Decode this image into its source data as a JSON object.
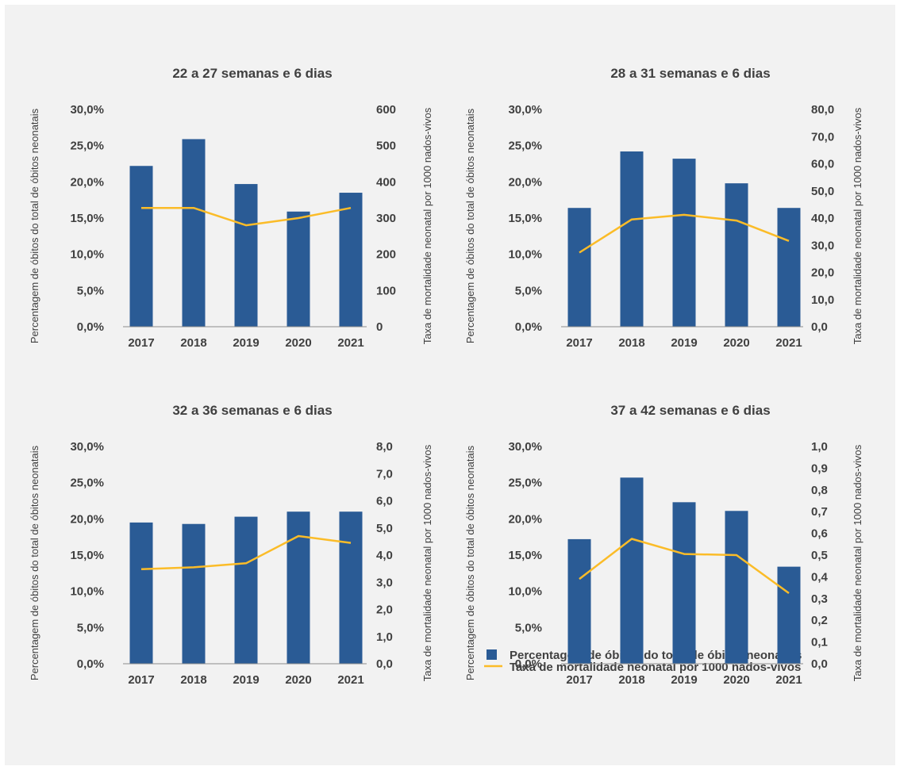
{
  "colors": {
    "bar": "#2a5b95",
    "line": "#fbbc28",
    "text": "#404040",
    "axis": "#8c8c8c",
    "background": "#f2f2f2"
  },
  "legend": {
    "bar_label": "Percentagem de óbitos do total de óbitos neonatais",
    "line_label": "Taxa de mortalidade neonatal por 1000 nados-vivos"
  },
  "chart_data": [
    {
      "type": "bar",
      "title": "22 a 27 semanas e 6 dias",
      "categories": [
        "2017",
        "2018",
        "2019",
        "2020",
        "2021"
      ],
      "ylabel": "Percentagem de óbitos do total de óbitos neonatais",
      "y2label": "Taxa de mortalidade neonatal por 1000 nados-vivos",
      "ylim": [
        0,
        30
      ],
      "yticks": [
        "0,0%",
        "5,0%",
        "10,0%",
        "15,0%",
        "20,0%",
        "25,0%",
        "30,0%"
      ],
      "y2lim": [
        0,
        600
      ],
      "y2ticks": [
        "0",
        "100",
        "200",
        "300",
        "400",
        "500",
        "600"
      ],
      "series": [
        {
          "name": "Percentagem de óbitos do total de óbitos neonatais",
          "type": "bar",
          "axis": "left",
          "values": [
            22.2,
            25.9,
            19.7,
            15.9,
            18.5
          ]
        },
        {
          "name": "Taxa de mortalidade neonatal por 1000 nados-vivos",
          "type": "line",
          "axis": "right",
          "values": [
            328,
            328,
            280,
            300,
            328
          ]
        }
      ]
    },
    {
      "type": "bar",
      "title": "28 a 31 semanas e 6 dias",
      "categories": [
        "2017",
        "2018",
        "2019",
        "2020",
        "2021"
      ],
      "ylabel": "Percentagem de óbitos do total de óbitos neonatais",
      "y2label": "Taxa de mortalidade neonatal por 1000 nados-vivos",
      "ylim": [
        0,
        30
      ],
      "yticks": [
        "0,0%",
        "5,0%",
        "10,0%",
        "15,0%",
        "20,0%",
        "25,0%",
        "30,0%"
      ],
      "y2lim": [
        0,
        80
      ],
      "y2ticks": [
        "0,0",
        "10,0",
        "20,0",
        "30,0",
        "40,0",
        "50,0",
        "60,0",
        "70,0",
        "80,0"
      ],
      "series": [
        {
          "name": "Percentagem de óbitos do total de óbitos neonatais",
          "type": "bar",
          "axis": "left",
          "values": [
            16.4,
            24.2,
            23.2,
            19.8,
            16.4
          ]
        },
        {
          "name": "Taxa de mortalidade neonatal por 1000 nados-vivos",
          "type": "line",
          "axis": "right",
          "values": [
            27.3,
            39.5,
            41.2,
            39.1,
            31.6
          ]
        }
      ]
    },
    {
      "type": "bar",
      "title": "32 a 36 semanas e 6 dias",
      "categories": [
        "2017",
        "2018",
        "2019",
        "2020",
        "2021"
      ],
      "ylabel": "Percentagem de óbitos do total de óbitos neonatais",
      "y2label": "Taxa de mortalidade neonatal por 1000 nados-vivos",
      "ylim": [
        0,
        30
      ],
      "yticks": [
        "0,0%",
        "5,0%",
        "10,0%",
        "15,0%",
        "20,0%",
        "25,0%",
        "30,0%"
      ],
      "y2lim": [
        0,
        8
      ],
      "y2ticks": [
        "0,0",
        "1,0",
        "2,0",
        "3,0",
        "4,0",
        "5,0",
        "6,0",
        "7,0",
        "8,0"
      ],
      "series": [
        {
          "name": "Percentagem de óbitos do total de óbitos neonatais",
          "type": "bar",
          "axis": "left",
          "values": [
            19.5,
            19.3,
            20.3,
            21.0,
            21.0
          ]
        },
        {
          "name": "Taxa de mortalidade neonatal por 1000 nados-vivos",
          "type": "line",
          "axis": "right",
          "values": [
            3.48,
            3.55,
            3.7,
            4.7,
            4.45
          ]
        }
      ]
    },
    {
      "type": "bar",
      "title": "37 a 42 semanas e 6 dias",
      "categories": [
        "2017",
        "2018",
        "2019",
        "2020",
        "2021"
      ],
      "ylabel": "Percentagem de óbitos do total de óbitos neonatais",
      "y2label": "Taxa de mortalidade neonatal por 1000 nados-vivos",
      "ylim": [
        0,
        30
      ],
      "yticks": [
        "0,0%",
        "5,0%",
        "10,0%",
        "15,0%",
        "20,0%",
        "25,0%",
        "30,0%"
      ],
      "y2lim": [
        0,
        1
      ],
      "y2ticks": [
        "0,0",
        "0,1",
        "0,2",
        "0,3",
        "0,4",
        "0,5",
        "0,6",
        "0,7",
        "0,8",
        "0,9",
        "1,0"
      ],
      "series": [
        {
          "name": "Percentagem de óbitos do total de óbitos neonatais",
          "type": "bar",
          "axis": "left",
          "values": [
            17.2,
            25.7,
            22.3,
            21.1,
            13.4
          ]
        },
        {
          "name": "Taxa de mortalidade neonatal por 1000 nados-vivos",
          "type": "line",
          "axis": "right",
          "values": [
            0.39,
            0.575,
            0.505,
            0.5,
            0.325
          ]
        }
      ]
    }
  ]
}
